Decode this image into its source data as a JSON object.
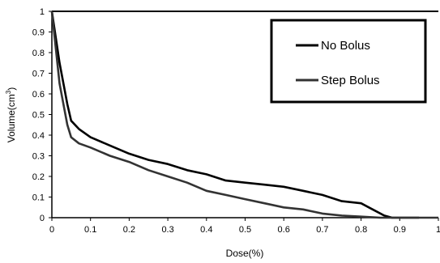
{
  "chart_data": {
    "type": "line",
    "title": "",
    "xlabel": "Dose(%)",
    "ylabel": "Volume(cm",
    "ylabel_superscript": "3",
    "ylabel_suffix": ")",
    "xlim": [
      0,
      1
    ],
    "ylim": [
      0,
      1
    ],
    "x_ticks": [
      0,
      0.1,
      0.2,
      0.3,
      0.4,
      0.5,
      0.6,
      0.7,
      0.8,
      0.9,
      1
    ],
    "x_tick_labels": [
      "0",
      "0.1",
      "0.2",
      "0.3",
      "0.4",
      "0.5",
      "0.6",
      "0.7",
      "0.8",
      "0.9",
      "1"
    ],
    "y_ticks": [
      0,
      0.1,
      0.2,
      0.3,
      0.4,
      0.5,
      0.6,
      0.7,
      0.8,
      0.9,
      1
    ],
    "y_tick_labels": [
      "0",
      "0.1",
      "0.2",
      "0.3",
      "0.4",
      "0.5",
      "0.6",
      "0.7",
      "0.8",
      "0.9",
      "1"
    ],
    "grid": false,
    "legend_position": "top-right",
    "series": [
      {
        "name": "No Bolus",
        "color": "#000000",
        "x": [
          0,
          0.02,
          0.04,
          0.05,
          0.07,
          0.1,
          0.15,
          0.2,
          0.25,
          0.3,
          0.35,
          0.4,
          0.45,
          0.5,
          0.55,
          0.6,
          0.65,
          0.7,
          0.75,
          0.8,
          0.83,
          0.86,
          0.88,
          0.95
        ],
        "values": [
          1.0,
          0.75,
          0.55,
          0.47,
          0.43,
          0.39,
          0.35,
          0.31,
          0.28,
          0.26,
          0.23,
          0.21,
          0.18,
          0.17,
          0.16,
          0.15,
          0.13,
          0.11,
          0.08,
          0.07,
          0.04,
          0.01,
          0.0,
          0.0
        ]
      },
      {
        "name": "Step Bolus",
        "color": "#333333",
        "x": [
          0,
          0.02,
          0.04,
          0.05,
          0.07,
          0.1,
          0.15,
          0.2,
          0.25,
          0.3,
          0.35,
          0.4,
          0.45,
          0.5,
          0.55,
          0.6,
          0.65,
          0.7,
          0.75,
          0.8,
          0.85,
          0.9,
          1.0
        ],
        "values": [
          1.0,
          0.65,
          0.45,
          0.39,
          0.36,
          0.34,
          0.3,
          0.27,
          0.23,
          0.2,
          0.17,
          0.13,
          0.11,
          0.09,
          0.07,
          0.05,
          0.04,
          0.02,
          0.01,
          0.005,
          0.0,
          0.0,
          0.0
        ]
      }
    ]
  }
}
